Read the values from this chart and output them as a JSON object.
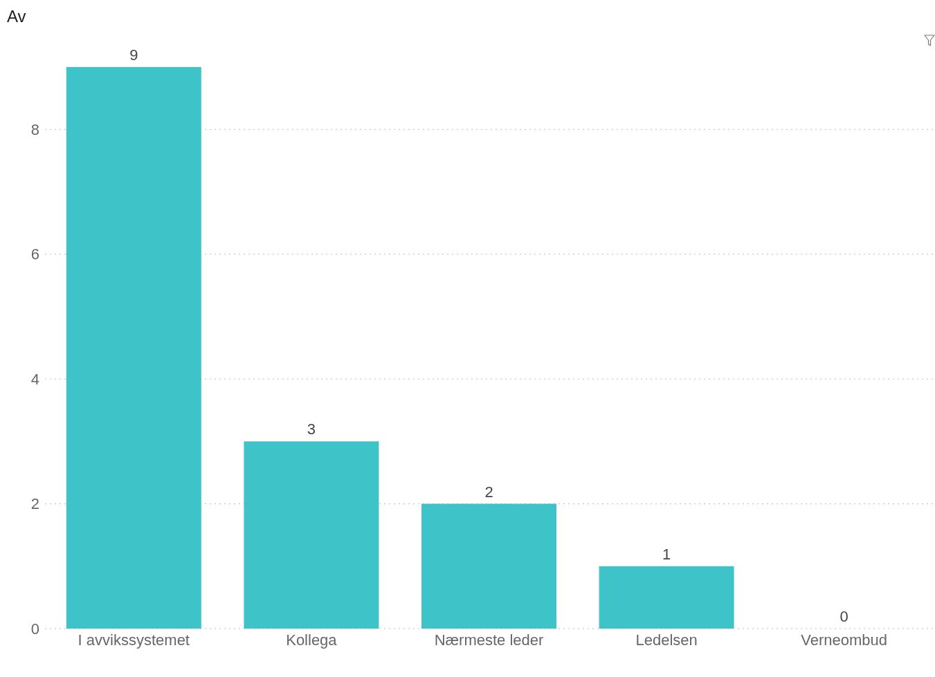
{
  "chart_data": {
    "type": "bar",
    "title": "Av",
    "categories": [
      "I avvikssystemet",
      "Kollega",
      "Nærmeste leder",
      "Ledelsen",
      "Verneombud"
    ],
    "values": [
      9,
      3,
      2,
      1,
      0
    ],
    "color": "#3ec3c9",
    "ylim": [
      0,
      9
    ],
    "yticks": [
      0,
      2,
      4,
      6,
      8
    ],
    "grid": "y",
    "data_labels": true
  }
}
